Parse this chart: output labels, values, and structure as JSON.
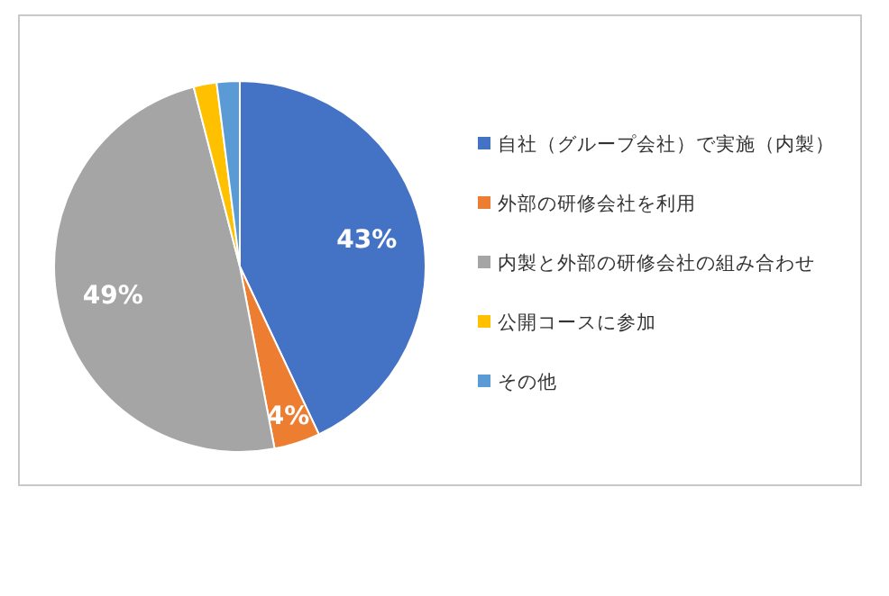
{
  "chart_data": {
    "type": "pie",
    "categories": [
      "自社（グループ会社）で実施（内製）",
      "外部の研修会社を利用",
      "内製と外部の研修会社の組み合わせ",
      "公開コースに参加",
      "その他"
    ],
    "values": [
      43,
      4,
      49,
      2,
      2
    ],
    "colors": [
      "#4472c4",
      "#ed7d31",
      "#a5a5a5",
      "#ffc000",
      "#5b9bd5"
    ],
    "value_labels": [
      "43%",
      "4%",
      "49%",
      null,
      null
    ],
    "legend": "right"
  }
}
